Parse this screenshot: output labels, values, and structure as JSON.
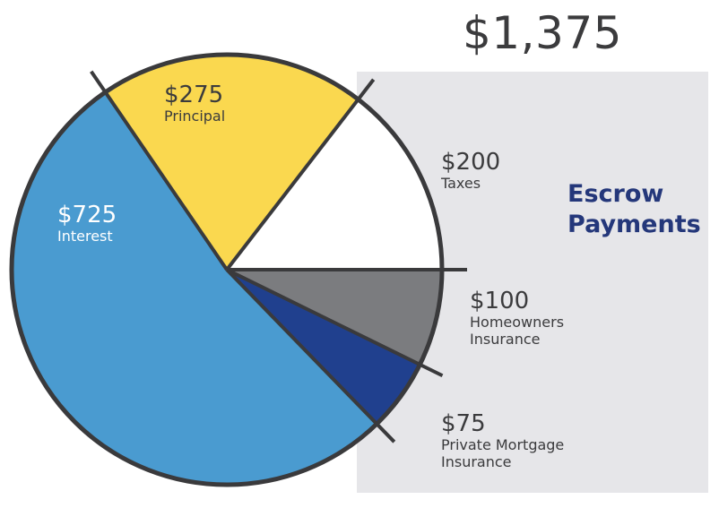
{
  "header": {
    "total": "$1,375"
  },
  "escrow": {
    "line1": "Escrow",
    "line2": "Payments"
  },
  "colors": {
    "interest": "#4a9bd0",
    "principal": "#fad84f",
    "taxes": "#ffffff",
    "homeowners": "#7b7c7f",
    "pmi": "#20408e",
    "outline": "#3a3a3c",
    "panel": "#e6e6e9",
    "escrow_text": "#24377a"
  },
  "chart_data": {
    "type": "pie",
    "title": "$1,375",
    "slices": [
      {
        "amount_label": "$725",
        "name": "Interest",
        "value": 725,
        "color": "#4a9bd0"
      },
      {
        "amount_label": "$275",
        "name": "Principal",
        "value": 275,
        "color": "#fad84f"
      },
      {
        "amount_label": "$200",
        "name": "Taxes",
        "value": 200,
        "color": "#ffffff"
      },
      {
        "amount_label": "$100",
        "name": "Homeowners Insurance",
        "value": 100,
        "color": "#7b7c7f"
      },
      {
        "amount_label": "$75",
        "name": "Private Mortgage Insurance",
        "value": 75,
        "color": "#20408e"
      }
    ],
    "legend": "none"
  }
}
